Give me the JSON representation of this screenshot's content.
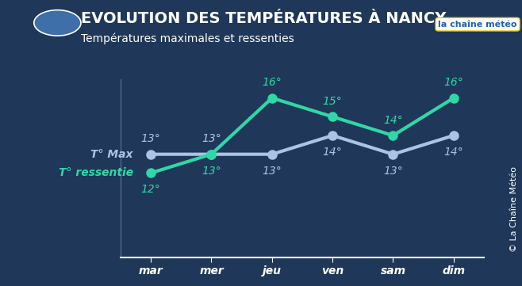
{
  "chart_data": {
    "type": "line",
    "title": "EVOLUTION DES TEMPÉRATURES À NANCY",
    "subtitle": "Températures maximales et ressenties",
    "logo": "la chaîne météo",
    "copyright": "© La Chaîne Météo",
    "categories": [
      "mar",
      "mer",
      "jeu",
      "ven",
      "sam",
      "dim"
    ],
    "series": [
      {
        "name": "T° Max",
        "color": "#a9c4e4",
        "marker": "circle",
        "values": [
          13,
          13,
          13,
          14,
          13,
          14
        ],
        "value_labels": [
          "13°",
          "13°",
          "13°",
          "14°",
          "13°",
          "14°"
        ]
      },
      {
        "name": "T° ressentie",
        "color": "#2fd8a6",
        "marker": "circle",
        "values": [
          12,
          13,
          16,
          15,
          14,
          16
        ],
        "value_labels": [
          "12°",
          "13°",
          "16°",
          "15°",
          "14°",
          "16°"
        ]
      }
    ],
    "ylim": [
      7.5,
      17
    ],
    "data_labels": true,
    "tick_labels": "x",
    "grid": false
  }
}
